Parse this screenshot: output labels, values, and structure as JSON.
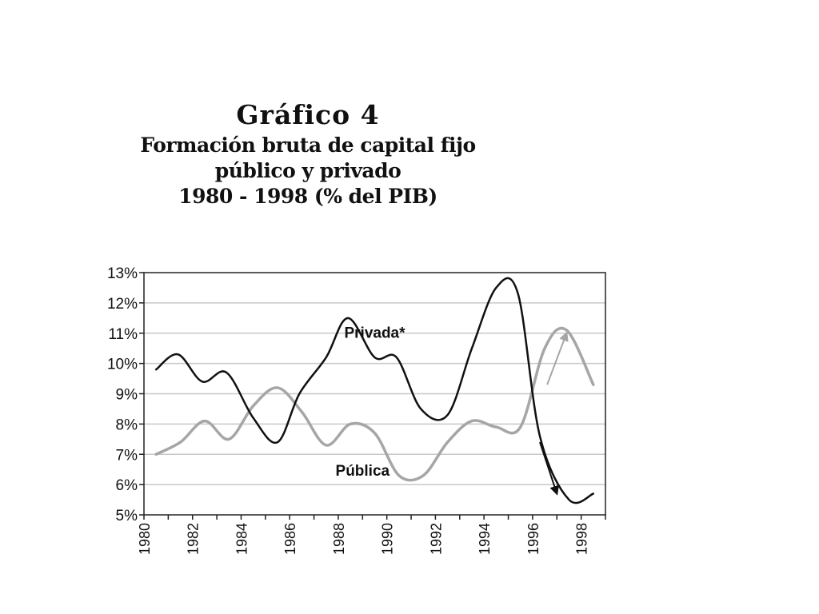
{
  "chart_data": {
    "type": "line",
    "title": "Gráfico  4",
    "subtitle_lines": [
      "Formación bruta de capital fijo",
      "público y privado",
      "1980 - 1998 (% del PIB)"
    ],
    "xlabel": "",
    "ylabel": "",
    "xlim": [
      1980,
      1999
    ],
    "ylim": [
      5,
      13
    ],
    "y_ticks": [
      {
        "value": 5,
        "label": "5%"
      },
      {
        "value": 6,
        "label": "6%"
      },
      {
        "value": 7,
        "label": "7%"
      },
      {
        "value": 8,
        "label": "8%"
      },
      {
        "value": 9,
        "label": "9%"
      },
      {
        "value": 10,
        "label": "10%"
      },
      {
        "value": 11,
        "label": "11%"
      },
      {
        "value": 12,
        "label": "12%"
      },
      {
        "value": 13,
        "label": "13%"
      }
    ],
    "x_ticks": [
      {
        "value": 1980,
        "label": "1980"
      },
      {
        "value": 1982,
        "label": "1982"
      },
      {
        "value": 1984,
        "label": "1984"
      },
      {
        "value": 1986,
        "label": "1986"
      },
      {
        "value": 1988,
        "label": "1988"
      },
      {
        "value": 1990,
        "label": "1990"
      },
      {
        "value": 1992,
        "label": "1992"
      },
      {
        "value": 1994,
        "label": "1994"
      },
      {
        "value": 1996,
        "label": "1996"
      },
      {
        "value": 1998,
        "label": "1998"
      }
    ],
    "grid": true,
    "series": [
      {
        "name": "Privada*",
        "color": "#111111",
        "label_at": {
          "x": 1989.5,
          "y": 10.85
        },
        "points": [
          {
            "x": 1980.5,
            "y": 9.8
          },
          {
            "x": 1981.4,
            "y": 10.3
          },
          {
            "x": 1982.4,
            "y": 9.4
          },
          {
            "x": 1983.4,
            "y": 9.7
          },
          {
            "x": 1984.5,
            "y": 8.2
          },
          {
            "x": 1985.5,
            "y": 7.4
          },
          {
            "x": 1986.4,
            "y": 9.0
          },
          {
            "x": 1987.5,
            "y": 10.2
          },
          {
            "x": 1988.4,
            "y": 11.5
          },
          {
            "x": 1989.5,
            "y": 10.2
          },
          {
            "x": 1990.4,
            "y": 10.2
          },
          {
            "x": 1991.4,
            "y": 8.5
          },
          {
            "x": 1992.5,
            "y": 8.3
          },
          {
            "x": 1993.5,
            "y": 10.5
          },
          {
            "x": 1994.5,
            "y": 12.5
          },
          {
            "x": 1995.4,
            "y": 12.3
          },
          {
            "x": 1996.3,
            "y": 7.6
          },
          {
            "x": 1997.5,
            "y": 5.5
          },
          {
            "x": 1998.5,
            "y": 5.7
          }
        ]
      },
      {
        "name": "Pública",
        "color": "#a6a6a6",
        "label_at": {
          "x": 1989.0,
          "y": 6.3
        },
        "points": [
          {
            "x": 1980.5,
            "y": 7.0
          },
          {
            "x": 1981.5,
            "y": 7.4
          },
          {
            "x": 1982.5,
            "y": 8.1
          },
          {
            "x": 1983.5,
            "y": 7.5
          },
          {
            "x": 1984.5,
            "y": 8.6
          },
          {
            "x": 1985.5,
            "y": 9.2
          },
          {
            "x": 1986.5,
            "y": 8.4
          },
          {
            "x": 1987.5,
            "y": 7.3
          },
          {
            "x": 1988.5,
            "y": 8.0
          },
          {
            "x": 1989.5,
            "y": 7.7
          },
          {
            "x": 1990.5,
            "y": 6.3
          },
          {
            "x": 1991.5,
            "y": 6.3
          },
          {
            "x": 1992.5,
            "y": 7.4
          },
          {
            "x": 1993.5,
            "y": 8.1
          },
          {
            "x": 1994.5,
            "y": 7.9
          },
          {
            "x": 1995.5,
            "y": 7.9
          },
          {
            "x": 1996.5,
            "y": 10.5
          },
          {
            "x": 1997.4,
            "y": 11.1
          },
          {
            "x": 1998.5,
            "y": 9.3
          }
        ]
      }
    ],
    "annotations": [
      {
        "type": "arrow",
        "color": "#111111",
        "from": {
          "x": 1996.3,
          "y": 7.4
        },
        "to": {
          "x": 1997.0,
          "y": 5.7
        }
      },
      {
        "type": "arrow",
        "color": "#a6a6a6",
        "from": {
          "x": 1996.6,
          "y": 9.3
        },
        "to": {
          "x": 1997.4,
          "y": 11.0
        }
      }
    ]
  }
}
